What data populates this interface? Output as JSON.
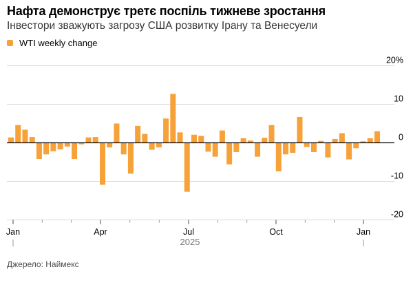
{
  "header": {
    "title": "Нафта демонструє третє поспіль тижневе зростання",
    "subtitle": "Інвестори зважують загрозу США розвитку Ірану та Венесуели"
  },
  "legend": {
    "label": "WTI weekly change"
  },
  "source": "Джерело: Наймекс",
  "colors": {
    "bar": "#F7A139",
    "grid": "#d9d9d9",
    "zero_line": "#000000",
    "major_tick": "#444444",
    "minor_tick": "#999999",
    "year_marker": "#999999",
    "text": "#000000",
    "muted_text": "#767676"
  },
  "chart_data": {
    "type": "bar",
    "title": "Нафта демонструє третє поспіль тижневе зростання",
    "subtitle": "Інвестори зважують загрозу США розвитку Ірану та Венесуели",
    "unit": "percent weekly change",
    "grid": "horizontal",
    "legend_position": "top-left",
    "ylim": [
      -20,
      20
    ],
    "series": [
      {
        "name": "WTI weekly change",
        "values": [
          1.4,
          4.6,
          3.4,
          1.5,
          -4.2,
          -3.0,
          -2.2,
          -1.7,
          -1.0,
          -4.2,
          -0.4,
          1.4,
          1.5,
          -10.9,
          -1.2,
          5.0,
          -3.0,
          -8.0,
          4.4,
          2.3,
          -1.8,
          -1.2,
          6.3,
          12.7,
          2.7,
          -12.7,
          2.1,
          1.8,
          -2.3,
          -3.6,
          3.2,
          -5.6,
          -2.4,
          1.2,
          0.6,
          -3.6,
          1.3,
          4.6,
          -7.4,
          -3.0,
          -2.6,
          6.7,
          -1.1,
          -2.4,
          0.5,
          -3.8,
          1.0,
          2.5,
          -4.3,
          -1.4,
          0.4,
          1.2,
          3.0
        ]
      }
    ],
    "x_axis": {
      "major_labels": [
        "Jan",
        "Apr",
        "Jul",
        "Oct",
        "Jan"
      ],
      "year_label": "2025",
      "frequency": "weekly"
    },
    "y_axis": {
      "ticks": [
        {
          "label": "20%",
          "value": 20
        },
        {
          "label": "10",
          "value": 10
        },
        {
          "label": "0",
          "value": 0
        },
        {
          "label": "-10",
          "value": -10
        },
        {
          "label": "-20",
          "value": -20
        }
      ]
    }
  }
}
